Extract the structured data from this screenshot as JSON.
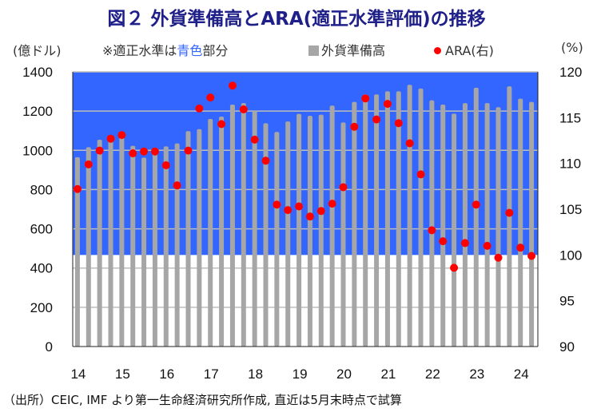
{
  "chart_data": {
    "type": "bar+scatter",
    "title": "図２ 外貨準備高とARA(適正水準評価)の推移",
    "left_unit": "(億ドル)",
    "right_unit": "(%)",
    "note_prefix": "※適正水準は",
    "note_blue": "青色",
    "note_suffix": "部分",
    "legend": {
      "bars": "外貨準備高",
      "dots": "ARA(右)"
    },
    "legend_placement": "top",
    "ylim_left": [
      0,
      1400
    ],
    "yticks_left": [
      "0",
      "200",
      "400",
      "600",
      "800",
      "1000",
      "1200",
      "1400"
    ],
    "ylim_right": [
      90,
      120
    ],
    "yticks_right": [
      "90",
      "95",
      "100",
      "105",
      "110",
      "115",
      "120"
    ],
    "xtick_labels": [
      "14",
      "15",
      "16",
      "17",
      "18",
      "19",
      "20",
      "21",
      "22",
      "23",
      "24"
    ],
    "adequate_range_right": [
      100,
      120
    ],
    "colors": {
      "bars": "#a6a6a6",
      "dots": "#ff0000",
      "adequate": "#3366ff",
      "title": "#1f1f8a"
    },
    "periods": "quarterly 2014Q1-2024Q2",
    "reserves": [
      965,
      1016,
      1054,
      1075,
      1090,
      1023,
      963,
      1000,
      1020,
      1035,
      1098,
      1108,
      1160,
      1172,
      1233,
      1241,
      1200,
      1138,
      1094,
      1147,
      1186,
      1176,
      1182,
      1228,
      1142,
      1247,
      1285,
      1285,
      1301,
      1301,
      1334,
      1315,
      1255,
      1233,
      1187,
      1241,
      1319,
      1241,
      1220,
      1326,
      1263,
      1247
    ],
    "ara": [
      107.2,
      109.9,
      111.4,
      112.7,
      113.1,
      111.1,
      111.3,
      111.3,
      109.8,
      107.6,
      111.4,
      116.0,
      117.2,
      114.3,
      118.5,
      115.9,
      112.6,
      110.3,
      105.5,
      104.9,
      105.3,
      104.2,
      104.8,
      105.6,
      107.4,
      114.0,
      117.1,
      114.8,
      116.5,
      114.4,
      112.2,
      108.8,
      102.7,
      101.5,
      98.6,
      101.3,
      105.5,
      101.0,
      99.7,
      104.6,
      100.8,
      99.9
    ]
  },
  "source": "（出所）CEIC, IMF より第一生命経済研究所作成, 直近は5月末時点で試算"
}
